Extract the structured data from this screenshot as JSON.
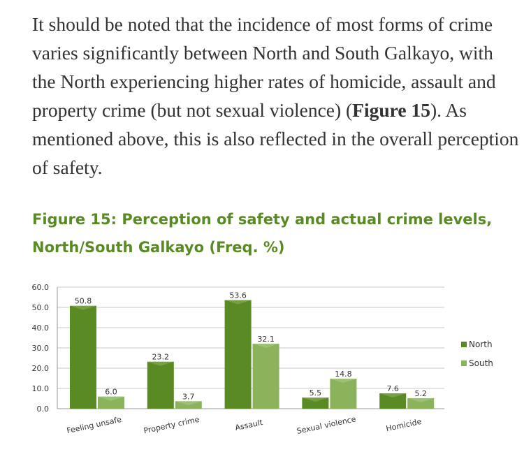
{
  "paragraph": {
    "part1": "It should be noted that the incidence of most forms of crime varies significantly between North and South Galkayo, with the North experiencing higher rates of homicide, assault and property crime (but not sexual violence) (",
    "ref": "Figure 15",
    "part2": "). As mentioned above, this is also reflected in the overall perception of safety."
  },
  "figure": {
    "title_line1": "Figure 15: Perception of safety and actual crime levels,",
    "title_line2": "North/South Galkayo (Freq. %)"
  },
  "chart_data": {
    "type": "bar",
    "categories": [
      "Feeling unsafe",
      "Property crime",
      "Assault",
      "Sexual violence",
      "Homicide"
    ],
    "series": [
      {
        "name": "North",
        "values": [
          50.8,
          23.2,
          53.6,
          5.5,
          7.6
        ],
        "color": "#5a8a23",
        "labels": [
          "50.8",
          "23.2",
          "53.6",
          "5.5",
          "7.6"
        ]
      },
      {
        "name": "South",
        "values": [
          6.0,
          3.7,
          32.1,
          14.8,
          5.2
        ],
        "color": "#8ab35c",
        "labels": [
          "6.0",
          "3.7",
          "32.1",
          "14.8",
          "5.2"
        ]
      }
    ],
    "ylim": [
      0,
      60
    ],
    "yticks": [
      "0.0",
      "10.0",
      "20.0",
      "30.0",
      "40.0",
      "50.0",
      "60.0"
    ],
    "grid": true,
    "legend": "right"
  }
}
